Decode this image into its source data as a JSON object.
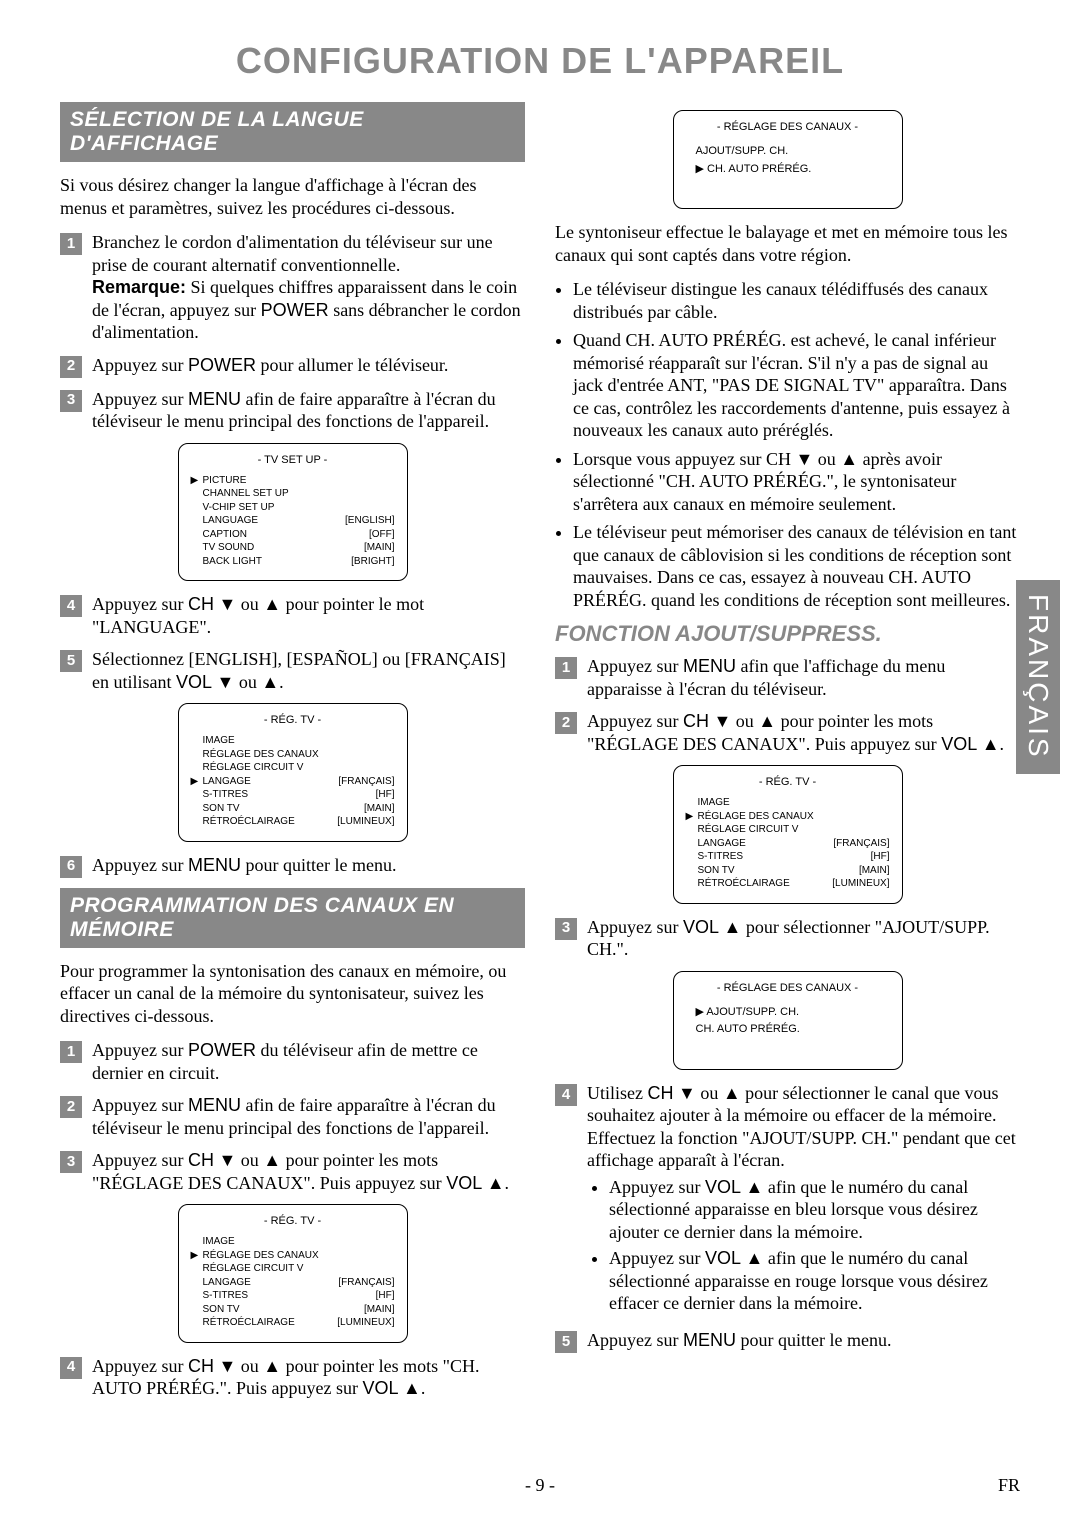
{
  "page_title": "CONFIGURATION DE L'APPAREIL",
  "side_tab": "FRANÇAIS",
  "footer_page": "- 9 -",
  "footer_lang": "FR",
  "left": {
    "section1_header": "SÉLECTION DE LA LANGUE D'AFFICHAGE",
    "intro": "Si vous désirez changer la langue d'affichage à l'écran des menus et paramètres, suivez les procédures ci-dessous.",
    "step1_a": "Branchez le cordon d'alimentation du téléviseur sur une prise de courant alternatif conventionnelle.",
    "step1_remarque_label": "Remarque:",
    "step1_b": " Si quelques chiffres apparaissent dans le coin de l'écran, appuyez sur ",
    "step1_power": "POWER",
    "step1_c": " sans débrancher le cordon d'alimentation.",
    "step2_a": "Appuyez sur ",
    "step2_power": "POWER",
    "step2_b": " pour allumer le téléviseur.",
    "step3_a": "Appuyez sur ",
    "step3_menu": "MENU",
    "step3_b": " afin de faire apparaître à l'écran du téléviseur le menu principal des fonctions de l'appareil.",
    "osd1": {
      "title": "- TV SET UP -",
      "rows": [
        {
          "marker": "▶",
          "label": "PICTURE",
          "value": ""
        },
        {
          "marker": "",
          "label": "CHANNEL SET UP",
          "value": ""
        },
        {
          "marker": "",
          "label": "V-CHIP SET UP",
          "value": ""
        },
        {
          "marker": "",
          "label": "LANGUAGE",
          "value": "[ENGLISH]"
        },
        {
          "marker": "",
          "label": "CAPTION",
          "value": "[OFF]"
        },
        {
          "marker": "",
          "label": "TV SOUND",
          "value": "[MAIN]"
        },
        {
          "marker": "",
          "label": "BACK LIGHT",
          "value": "[BRIGHT]"
        }
      ]
    },
    "step4_a": "Appuyez sur ",
    "step4_ch": "CH",
    "step4_b": " ▼ ou ▲ pour pointer le mot \"LANGUAGE\".",
    "step5_a": "Sélectionnez [ENGLISH], [ESPAÑOL] ou [FRANÇAIS] en utilisant ",
    "step5_vol": "VOL",
    "step5_b": " ▼ ou ▲.",
    "osd2": {
      "title": "- RÉG. TV -",
      "rows": [
        {
          "marker": "",
          "label": "IMAGE",
          "value": ""
        },
        {
          "marker": "",
          "label": "RÉGLAGE DES CANAUX",
          "value": ""
        },
        {
          "marker": "",
          "label": "RÉGLAGE CIRCUIT V",
          "value": ""
        },
        {
          "marker": "▶",
          "label": "LANGAGE",
          "value": "[FRANÇAIS]"
        },
        {
          "marker": "",
          "label": "S-TITRES",
          "value": "[HF]"
        },
        {
          "marker": "",
          "label": "SON TV",
          "value": "[MAIN]"
        },
        {
          "marker": "",
          "label": "RÉTROÉCLAIRAGE",
          "value": "[LUMINEUX]"
        }
      ]
    },
    "step6_a": "Appuyez sur ",
    "step6_menu": "MENU",
    "step6_b": " pour quitter le menu.",
    "section2_header": "PROGRAMMATION DES CANAUX EN MÉMOIRE",
    "intro2": "Pour programmer la syntonisation des canaux en mémoire, ou effacer un canal de la mémoire du syntonisateur, suivez les directives ci-dessous.",
    "s2_step1_a": "Appuyez sur ",
    "s2_step1_power": "POWER",
    "s2_step1_b": " du téléviseur afin de mettre ce dernier en circuit.",
    "s2_step2_a": "Appuyez sur ",
    "s2_step2_menu": "MENU",
    "s2_step2_b": " afin de faire apparaître à l'écran du téléviseur le menu principal des fonctions de l'appareil.",
    "s2_step3_a": "Appuyez sur ",
    "s2_step3_ch": "CH",
    "s2_step3_b": " ▼ ou ▲ pour pointer les mots \"RÉGLAGE DES CANAUX\". Puis appuyez sur ",
    "s2_step3_vol": "VOL",
    "s2_step3_c": " ▲.",
    "osd3": {
      "title": "- RÉG. TV -",
      "rows": [
        {
          "marker": "",
          "label": "IMAGE",
          "value": ""
        },
        {
          "marker": "▶",
          "label": "RÉGLAGE DES CANAUX",
          "value": ""
        },
        {
          "marker": "",
          "label": "RÉGLAGE CIRCUIT V",
          "value": ""
        },
        {
          "marker": "",
          "label": "LANGAGE",
          "value": "[FRANÇAIS]"
        },
        {
          "marker": "",
          "label": "S-TITRES",
          "value": "[HF]"
        },
        {
          "marker": "",
          "label": "SON TV",
          "value": "[MAIN]"
        },
        {
          "marker": "",
          "label": "RÉTROÉCLAIRAGE",
          "value": "[LUMINEUX]"
        }
      ]
    },
    "s2_step4_a": "Appuyez sur ",
    "s2_step4_ch": "CH",
    "s2_step4_b": " ▼ ou ▲ pour pointer les mots \"CH. AUTO PRÉRÉG.\". Puis appuyez sur ",
    "s2_step4_vol": "VOL",
    "s2_step4_c": " ▲."
  },
  "right": {
    "osd_top": {
      "title": "- RÉGLAGE DES CANAUX -",
      "rows": [
        "AJOUT/SUPP. CH.",
        "▶  CH. AUTO PRÉRÉG."
      ]
    },
    "intro_r": "Le syntoniseur effectue le balayage et met en mémoire tous les canaux qui sont captés dans votre région.",
    "bullets_r": [
      "Le téléviseur distingue les canaux télédiffusés des canaux distribués par câble.",
      "Quand CH. AUTO PRÉRÉG. est achevé, le canal inférieur mémorisé réapparaît sur l'écran. S'il n'y a pas de signal au jack d'entrée ANT, \"PAS DE SIGNAL TV\" apparaîtra. Dans ce cas, contrôlez les raccordements d'antenne, puis essayez à nouveaux les canaux auto préréglés.",
      "Lorsque vous appuyez sur CH ▼ ou ▲ après avoir sélectionné \"CH. AUTO PRÉRÉG.\", le syntonisateur s'arrêtera aux canaux en mémoire seulement.",
      "Le téléviseur peut mémoriser des canaux de télévision en tant que canaux de câblovision si les conditions de réception sont mauvaises. Dans ce cas, essayez à nouveau CH. AUTO PRÉRÉG. quand les conditions de réception sont meilleures."
    ],
    "sub_heading": "FONCTION AJOUT/SUPPRESS.",
    "r_step1_a": "Appuyez sur ",
    "r_step1_menu": "MENU",
    "r_step1_b": " afin que l'affichage du menu apparaisse à l'écran du téléviseur.",
    "r_step2_a": "Appuyez sur ",
    "r_step2_ch": "CH",
    "r_step2_b": " ▼ ou ▲ pour pointer les mots \"RÉGLAGE DES CANAUX\". Puis appuyez sur ",
    "r_step2_vol": "VOL",
    "r_step2_c": " ▲.",
    "osd_r2": {
      "title": "- RÉG. TV -",
      "rows": [
        {
          "marker": "",
          "label": "IMAGE",
          "value": ""
        },
        {
          "marker": "▶",
          "label": "RÉGLAGE DES CANAUX",
          "value": ""
        },
        {
          "marker": "",
          "label": "RÉGLAGE CIRCUIT V",
          "value": ""
        },
        {
          "marker": "",
          "label": "LANGAGE",
          "value": "[FRANÇAIS]"
        },
        {
          "marker": "",
          "label": "S-TITRES",
          "value": "[HF]"
        },
        {
          "marker": "",
          "label": "SON TV",
          "value": "[MAIN]"
        },
        {
          "marker": "",
          "label": "RÉTROÉCLAIRAGE",
          "value": "[LUMINEUX]"
        }
      ]
    },
    "r_step3_a": "Appuyez sur ",
    "r_step3_vol": "VOL",
    "r_step3_b": " ▲ pour sélectionner \"AJOUT/SUPP. CH.\".",
    "osd_r3": {
      "title": "- RÉGLAGE DES CANAUX -",
      "rows": [
        "▶  AJOUT/SUPP. CH.",
        "    CH. AUTO PRÉRÉG."
      ]
    },
    "r_step4_a": "Utilisez ",
    "r_step4_ch": "CH",
    "r_step4_b": " ▼ ou ▲ pour sélectionner le canal que vous souhaitez ajouter à la mémoire ou effacer de la mémoire.",
    "r_step4_c": "Effectuez la fonction \"AJOUT/SUPP. CH.\" pendant que cet affichage apparaît à l'écran.",
    "r_step4_sub1_a": "Appuyez sur ",
    "r_step4_sub1_vol": "VOL",
    "r_step4_sub1_b": " ▲ afin que le numéro du canal sélectionné apparaisse en bleu lorsque vous désirez ajouter ce dernier dans la mémoire.",
    "r_step4_sub2_a": "Appuyez sur ",
    "r_step4_sub2_vol": "VOL",
    "r_step4_sub2_b": " ▲ afin que le numéro du canal sélectionné apparaisse en rouge lorsque vous désirez effacer ce dernier dans la mémoire.",
    "r_step5_a": "Appuyez sur ",
    "r_step5_menu": "MENU",
    "r_step5_b": " pour quitter le menu."
  }
}
